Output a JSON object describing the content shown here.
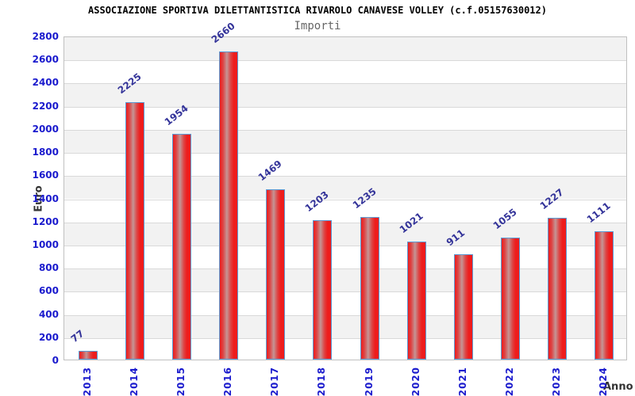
{
  "header": {
    "title": "ASSOCIAZIONE SPORTIVA DILETTANTISTICA RIVAROLO CANAVESE VOLLEY (c.f.05157630012)",
    "subtitle": "Importi"
  },
  "chart_data": {
    "type": "bar",
    "title": "ASSOCIAZIONE SPORTIVA DILETTANTISTICA RIVAROLO CANAVESE VOLLEY (c.f.05157630012)",
    "subtitle": "Importi",
    "xlabel": "Anno",
    "ylabel": "Euro",
    "categories": [
      "2013",
      "2014",
      "2015",
      "2016",
      "2017",
      "2018",
      "2019",
      "2020",
      "2021",
      "2022",
      "2023",
      "2024"
    ],
    "values": [
      77,
      2225,
      1954,
      2660,
      1469,
      1203,
      1235,
      1021,
      911,
      1055,
      1227,
      1111
    ],
    "ylim": [
      0,
      2800
    ],
    "ytick_step": 200,
    "ytick_labels": [
      "0",
      "200",
      "400",
      "600",
      "800",
      "1000",
      "1200",
      "1400",
      "1600",
      "1800",
      "2000",
      "2200",
      "2400",
      "2600",
      "2800"
    ],
    "grid": true,
    "grid_style": "alternating horizontal bands, gray band starts at top",
    "legend": "none",
    "bar_label_rotation_deg": -38,
    "xtick_rotation_deg": -90
  },
  "colors": {
    "tick_label": "#1a1acd",
    "value_label": "#333399",
    "bar_fill_main": "#ee1c1c",
    "bar_fill_mid": "#dd4444",
    "bar_fill_light": "#c59595",
    "bar_border": "#5b9bd5",
    "band": "#f2f2f2",
    "gridline": "#d9d9d9",
    "plot_border": "#c0c0c0",
    "title": "#000000",
    "subtitle": "#666666",
    "axis_title": "#333333",
    "background": "#ffffff"
  }
}
